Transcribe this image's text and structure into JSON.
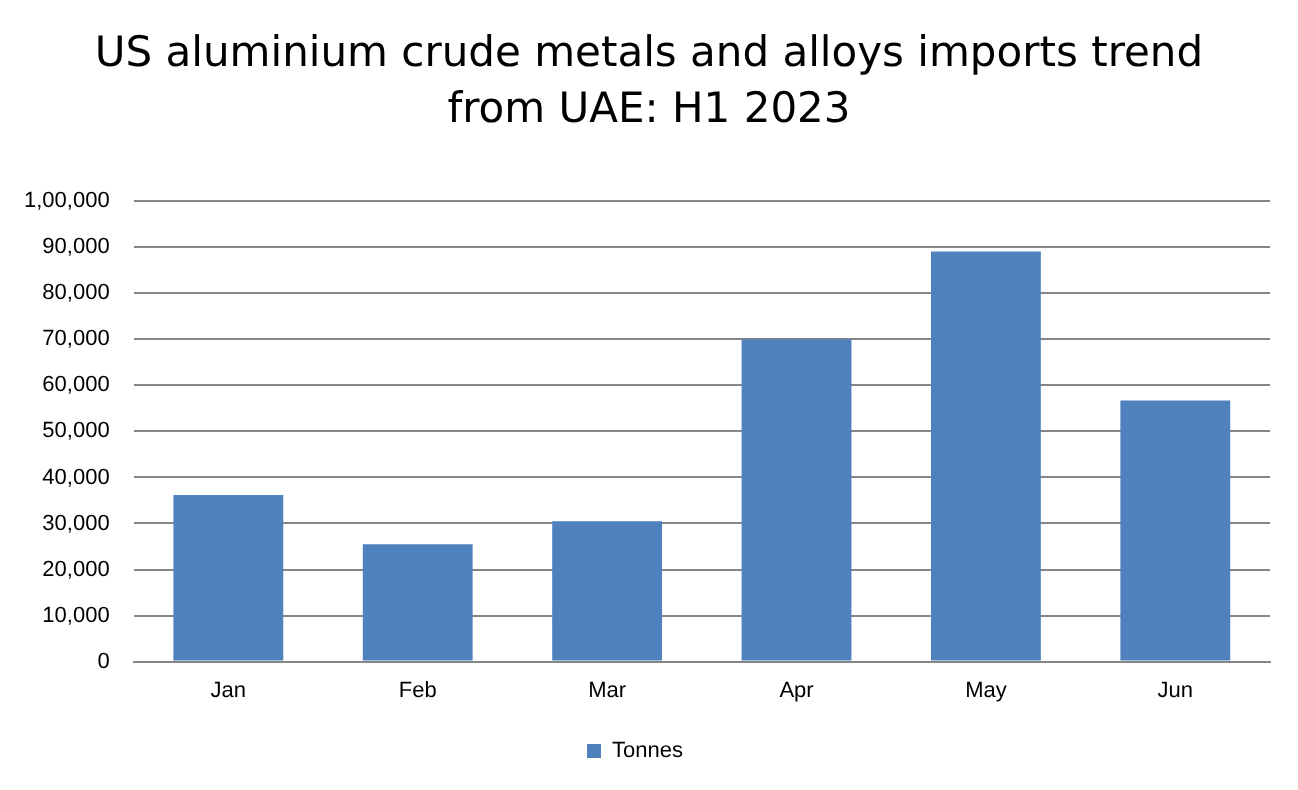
{
  "chart_data": {
    "type": "bar",
    "title": "US aluminium crude metals and alloys imports trend from UAE: H1 2023",
    "categories": [
      "Jan",
      "Feb",
      "Mar",
      "Apr",
      "May",
      "Jun"
    ],
    "series": [
      {
        "name": "Tonnes",
        "color": "#4f81bd",
        "values": [
          36200,
          25500,
          30500,
          70000,
          89100,
          56700
        ]
      }
    ],
    "ylim": [
      0,
      100000
    ],
    "yticks": [
      {
        "value": 0,
        "label": "0"
      },
      {
        "value": 10000,
        "label": "10,000"
      },
      {
        "value": 20000,
        "label": "20,000"
      },
      {
        "value": 30000,
        "label": "30,000"
      },
      {
        "value": 40000,
        "label": "40,000"
      },
      {
        "value": 50000,
        "label": "50,000"
      },
      {
        "value": 60000,
        "label": "60,000"
      },
      {
        "value": 70000,
        "label": "70,000"
      },
      {
        "value": 80000,
        "label": "80,000"
      },
      {
        "value": 90000,
        "label": "90,000"
      },
      {
        "value": 100000,
        "label": "1,00,000"
      }
    ],
    "grid": "y",
    "legend": "bottom"
  }
}
